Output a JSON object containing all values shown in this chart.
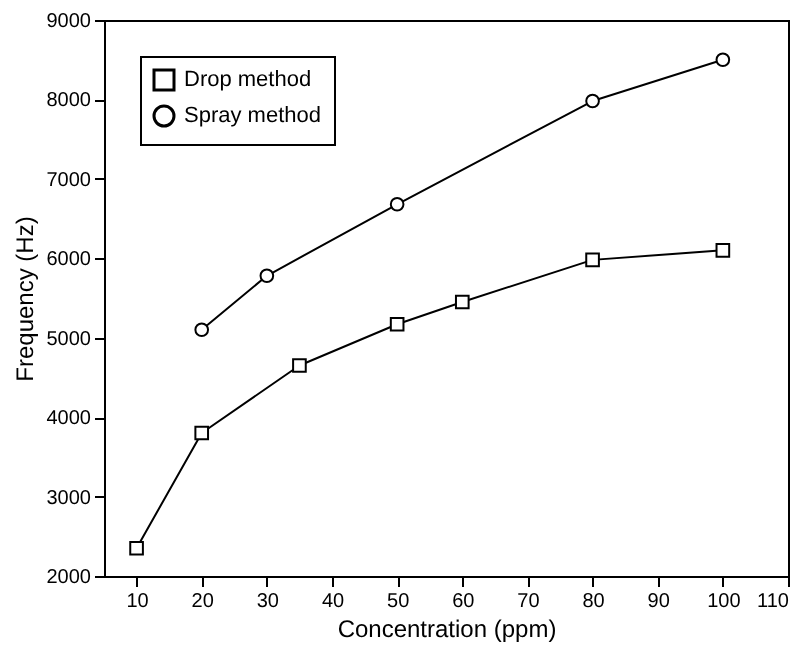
{
  "chart_data": {
    "type": "line",
    "xlabel": "Concentration (ppm)",
    "ylabel": "Frequency (Hz)",
    "xlim": [
      5,
      110
    ],
    "xticks": [
      10,
      20,
      30,
      40,
      50,
      60,
      70,
      80,
      90,
      100,
      110
    ],
    "ylim": [
      2000,
      9000
    ],
    "yticks": [
      2000,
      3000,
      4000,
      5000,
      6000,
      7000,
      8000,
      9000
    ],
    "grid": false,
    "legend": "top left",
    "series": [
      {
        "name": "Drop method",
        "color": "#000000",
        "marker": "square",
        "x": [
          10,
          20,
          35,
          50,
          60,
          80,
          100
        ],
        "values": [
          2350,
          3800,
          4650,
          5170,
          5450,
          5980,
          6100
        ]
      },
      {
        "name": "Spray method",
        "color": "#000000",
        "marker": "circle",
        "x": [
          20,
          30,
          50,
          80,
          100
        ],
        "values": [
          5100,
          5780,
          6680,
          7980,
          8500
        ]
      }
    ]
  }
}
